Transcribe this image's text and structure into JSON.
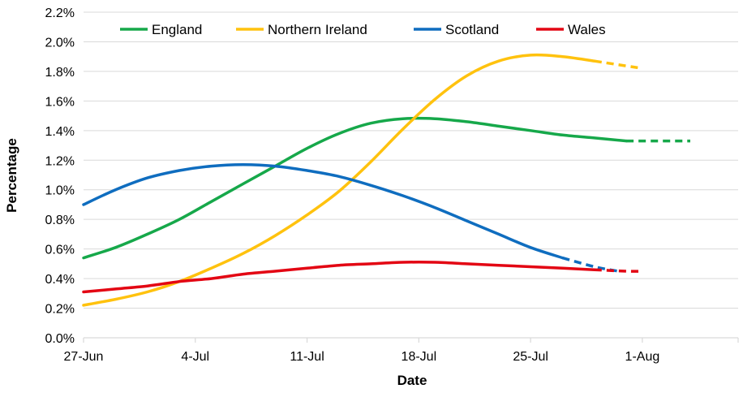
{
  "chart_data": {
    "type": "line",
    "title": "",
    "xlabel": "Date",
    "ylabel": "Percentage",
    "x_tick_labels": [
      "27-Jun",
      "4-Jul",
      "11-Jul",
      "18-Jul",
      "25-Jul",
      "1-Aug"
    ],
    "x_tick_days": [
      0,
      7,
      14,
      21,
      28,
      35
    ],
    "xlim_days": [
      0,
      41
    ],
    "y_tick_labels": [
      "0.0%",
      "0.2%",
      "0.4%",
      "0.6%",
      "0.8%",
      "1.0%",
      "1.2%",
      "1.4%",
      "1.6%",
      "1.8%",
      "2.0%",
      "2.2%"
    ],
    "ylim": [
      0,
      2.2
    ],
    "grid": true,
    "legend_position": "top",
    "series": [
      {
        "name": "England",
        "color": "#16a84a",
        "solid": [
          [
            0,
            0.54
          ],
          [
            2,
            0.61
          ],
          [
            4,
            0.7
          ],
          [
            6,
            0.8
          ],
          [
            8,
            0.92
          ],
          [
            10,
            1.04
          ],
          [
            12,
            1.16
          ],
          [
            14,
            1.28
          ],
          [
            16,
            1.38
          ],
          [
            18,
            1.45
          ],
          [
            20,
            1.48
          ],
          [
            22,
            1.48
          ],
          [
            24,
            1.46
          ],
          [
            26,
            1.43
          ],
          [
            28,
            1.4
          ],
          [
            30,
            1.37
          ],
          [
            32,
            1.35
          ],
          [
            34,
            1.33
          ]
        ],
        "dashed": [
          [
            34,
            1.33
          ],
          [
            36,
            1.33
          ],
          [
            38,
            1.33
          ]
        ]
      },
      {
        "name": "Northern Ireland",
        "color": "#ffc20e",
        "solid": [
          [
            0,
            0.22
          ],
          [
            2,
            0.26
          ],
          [
            4,
            0.31
          ],
          [
            6,
            0.38
          ],
          [
            8,
            0.47
          ],
          [
            10,
            0.57
          ],
          [
            12,
            0.69
          ],
          [
            14,
            0.83
          ],
          [
            16,
            0.99
          ],
          [
            18,
            1.19
          ],
          [
            20,
            1.41
          ],
          [
            22,
            1.61
          ],
          [
            24,
            1.77
          ],
          [
            26,
            1.87
          ],
          [
            28,
            1.91
          ],
          [
            30,
            1.9
          ],
          [
            32,
            1.87
          ]
        ],
        "dashed": [
          [
            32,
            1.87
          ],
          [
            35,
            1.82
          ]
        ]
      },
      {
        "name": "Scotland",
        "color": "#0f6dbf",
        "solid": [
          [
            0,
            0.9
          ],
          [
            2,
            1.0
          ],
          [
            4,
            1.08
          ],
          [
            6,
            1.13
          ],
          [
            8,
            1.16
          ],
          [
            10,
            1.17
          ],
          [
            12,
            1.16
          ],
          [
            14,
            1.13
          ],
          [
            16,
            1.09
          ],
          [
            18,
            1.03
          ],
          [
            20,
            0.96
          ],
          [
            22,
            0.88
          ],
          [
            24,
            0.79
          ],
          [
            26,
            0.7
          ],
          [
            28,
            0.61
          ],
          [
            30,
            0.54
          ]
        ],
        "dashed": [
          [
            30,
            0.54
          ],
          [
            32,
            0.48
          ],
          [
            33.5,
            0.45
          ]
        ]
      },
      {
        "name": "Wales",
        "color": "#e30613",
        "solid": [
          [
            0,
            0.31
          ],
          [
            2,
            0.33
          ],
          [
            4,
            0.35
          ],
          [
            6,
            0.38
          ],
          [
            8,
            0.4
          ],
          [
            10,
            0.43
          ],
          [
            12,
            0.45
          ],
          [
            14,
            0.47
          ],
          [
            16,
            0.49
          ],
          [
            18,
            0.5
          ],
          [
            20,
            0.51
          ],
          [
            22,
            0.51
          ],
          [
            24,
            0.5
          ],
          [
            26,
            0.49
          ],
          [
            28,
            0.48
          ],
          [
            30,
            0.47
          ],
          [
            32,
            0.46
          ]
        ],
        "dashed": [
          [
            32,
            0.46
          ],
          [
            34,
            0.45
          ],
          [
            35,
            0.45
          ]
        ]
      }
    ]
  }
}
